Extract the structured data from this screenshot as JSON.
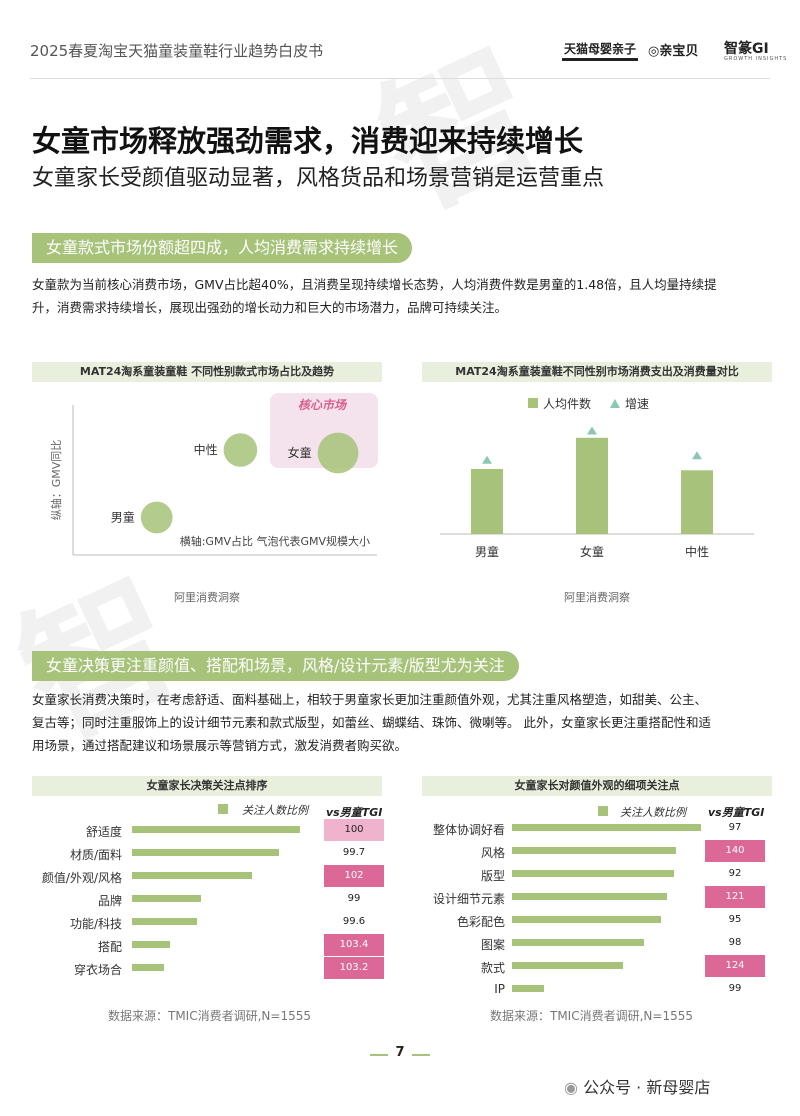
{
  "header": {
    "doc_title": "2025春夏淘宝天猫童装童鞋行业趋势白皮书",
    "logo_tmall": "天猫母婴亲子",
    "logo_qbb": "亲宝贝",
    "logo_zhixiang": "智篆GI",
    "logo_zhixiang_sub": "GROWTH INSIGHTS"
  },
  "page": {
    "title": "女童市场释放强劲需求，消费迎来持续增长",
    "subtitle": "女童家长受颜值驱动显著，风格货品和场景营销是运营重点",
    "page_number": "7",
    "footer_brand": "公众号 · 新母婴店"
  },
  "section1": {
    "heading": "女童款式市场份额超四成，人均消费需求持续增长",
    "para_line1": "女童款为当前核心消费市场，GMV占比超40%，且消费呈现持续增长态势，人均消费件数是男童的1.48倍，且人均量持续提",
    "para_line2": "升，消费需求持续增长，展现出强劲的增长动力和巨大的市场潜力，品牌可持续关注。"
  },
  "section2": {
    "heading": "女童决策更注重颜值、搭配和场景，风格/设计元素/版型尤为关注",
    "para_line1": "女童家长消费决策时，在考虑舒适、面料基础上，相较于男童家长更加注重颜值外观，尤其注重风格塑造，如甜美、公主、",
    "para_line2": "复古等；同时注重服饰上的设计细节元素和款式版型，如蕾丝、蝴蝶结、珠饰、微喇等。 此外，女童家长更注重搭配性和适",
    "para_line3": "用场景，通过搭配建议和场景展示等营销方式，激发消费者购买欲。"
  },
  "chart_data": [
    {
      "type": "scatter",
      "title": "MAT24淘系童装童鞋 不同性别款式市场占比及趋势",
      "ylabel": "纵轴：GMV同比",
      "xlabel": "横轴:GMV占比  气泡代表GMV规模大小",
      "annotation": "核心市场",
      "source": "阿里消费洞察",
      "points": [
        {
          "label": "男童",
          "x": 0.3,
          "y": 0.25,
          "size": 0.55
        },
        {
          "label": "中性",
          "x": 0.6,
          "y": 0.7,
          "size": 0.6
        },
        {
          "label": "女童",
          "x": 0.95,
          "y": 0.68,
          "size": 0.8
        }
      ]
    },
    {
      "type": "bar",
      "title": "MAT24淘系童装童鞋不同性别市场消费支出及消费量对比",
      "legend": [
        "人均件数",
        "增速"
      ],
      "categories": [
        "男童",
        "女童",
        "中性"
      ],
      "series": [
        {
          "name": "人均件数",
          "values": [
            1.0,
            1.48,
            0.98
          ]
        },
        {
          "name": "增速",
          "values": [
            1.05,
            1.5,
            1.12
          ]
        }
      ],
      "source": "阿里消费洞察"
    },
    {
      "type": "bar",
      "title": "女童家长决策关注点排序",
      "legend": "关注人数比例",
      "tgi_label": "vs男童TGI",
      "categories": [
        "舒适度",
        "材质/面料",
        "颜值/外观/风格",
        "品牌",
        "功能/科技",
        "搭配",
        "穿衣场合"
      ],
      "series": [
        {
          "name": "关注人数比例",
          "values": [
            80,
            70,
            57,
            33,
            31,
            18,
            15
          ]
        }
      ],
      "tgi": [
        "100",
        "99.7",
        "102",
        "99",
        "99.6",
        "103.4",
        "103.2"
      ],
      "tgi_level": [
        "mid",
        "none",
        "hi",
        "none",
        "none",
        "hi",
        "hi"
      ],
      "source": "数据来源：TMIC消费者调研,N=1555"
    },
    {
      "type": "bar",
      "title": "女童家长对颜值外观的细项关注点",
      "legend": "关注人数比例",
      "tgi_label": "vs男童TGI",
      "categories": [
        "整体协调好看",
        "风格",
        "版型",
        "设计细节元素",
        "色彩配色",
        "图案",
        "款式",
        "IP"
      ],
      "series": [
        {
          "name": "关注人数比例",
          "values": [
            90,
            78,
            77,
            74,
            71,
            63,
            53,
            15
          ]
        }
      ],
      "tgi": [
        "97",
        "140",
        "92",
        "121",
        "95",
        "98",
        "124",
        "99"
      ],
      "tgi_level": [
        "none",
        "hi",
        "none",
        "hi",
        "none",
        "none",
        "hi",
        "none"
      ],
      "source": "数据来源：TMIC消费者调研,N=1555"
    }
  ],
  "colors": {
    "accent": "#a6c379",
    "pink": "#db6896",
    "light_pink": "#f0b3cd",
    "chart_header_bg": "#e9efdd"
  }
}
